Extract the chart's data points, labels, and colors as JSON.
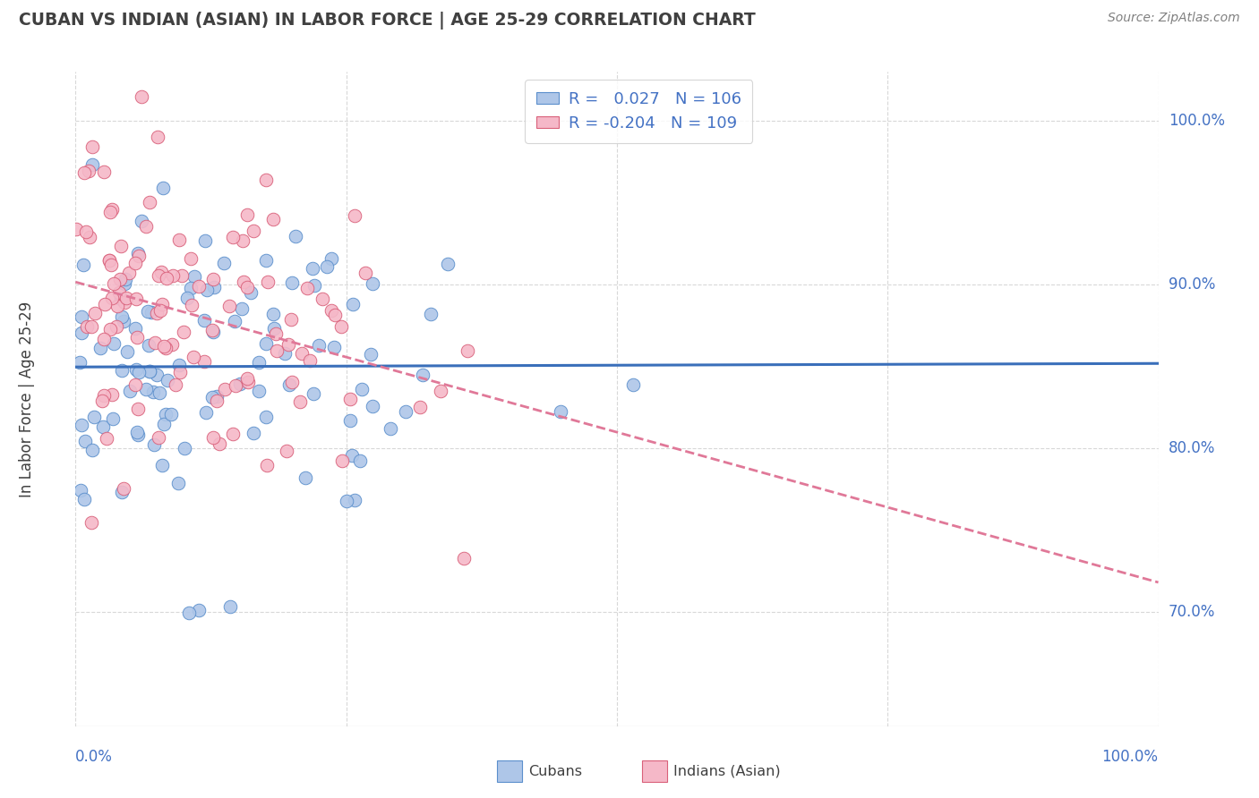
{
  "title": "CUBAN VS INDIAN (ASIAN) IN LABOR FORCE | AGE 25-29 CORRELATION CHART",
  "source": "Source: ZipAtlas.com",
  "ylabel": "In Labor Force | Age 25-29",
  "xlim": [
    0.0,
    1.0
  ],
  "ylim": [
    0.63,
    1.03
  ],
  "yticks": [
    0.7,
    0.8,
    0.9,
    1.0
  ],
  "ytick_labels": [
    "70.0%",
    "80.0%",
    "90.0%",
    "100.0%"
  ],
  "cuban_R": 0.027,
  "cuban_N": 106,
  "indian_R": -0.204,
  "indian_N": 109,
  "cuban_color": "#aec6e8",
  "indian_color": "#f5b8c8",
  "cuban_edge_color": "#5b8fcc",
  "indian_edge_color": "#d9607a",
  "cuban_line_color": "#3a6fba",
  "indian_line_color": "#e07898",
  "label_color": "#4472c4",
  "legend_labels": [
    "Cubans",
    "Indians (Asian)"
  ],
  "background_color": "#ffffff",
  "grid_color": "#d8d8d8",
  "title_color": "#404040",
  "source_color": "#808080"
}
